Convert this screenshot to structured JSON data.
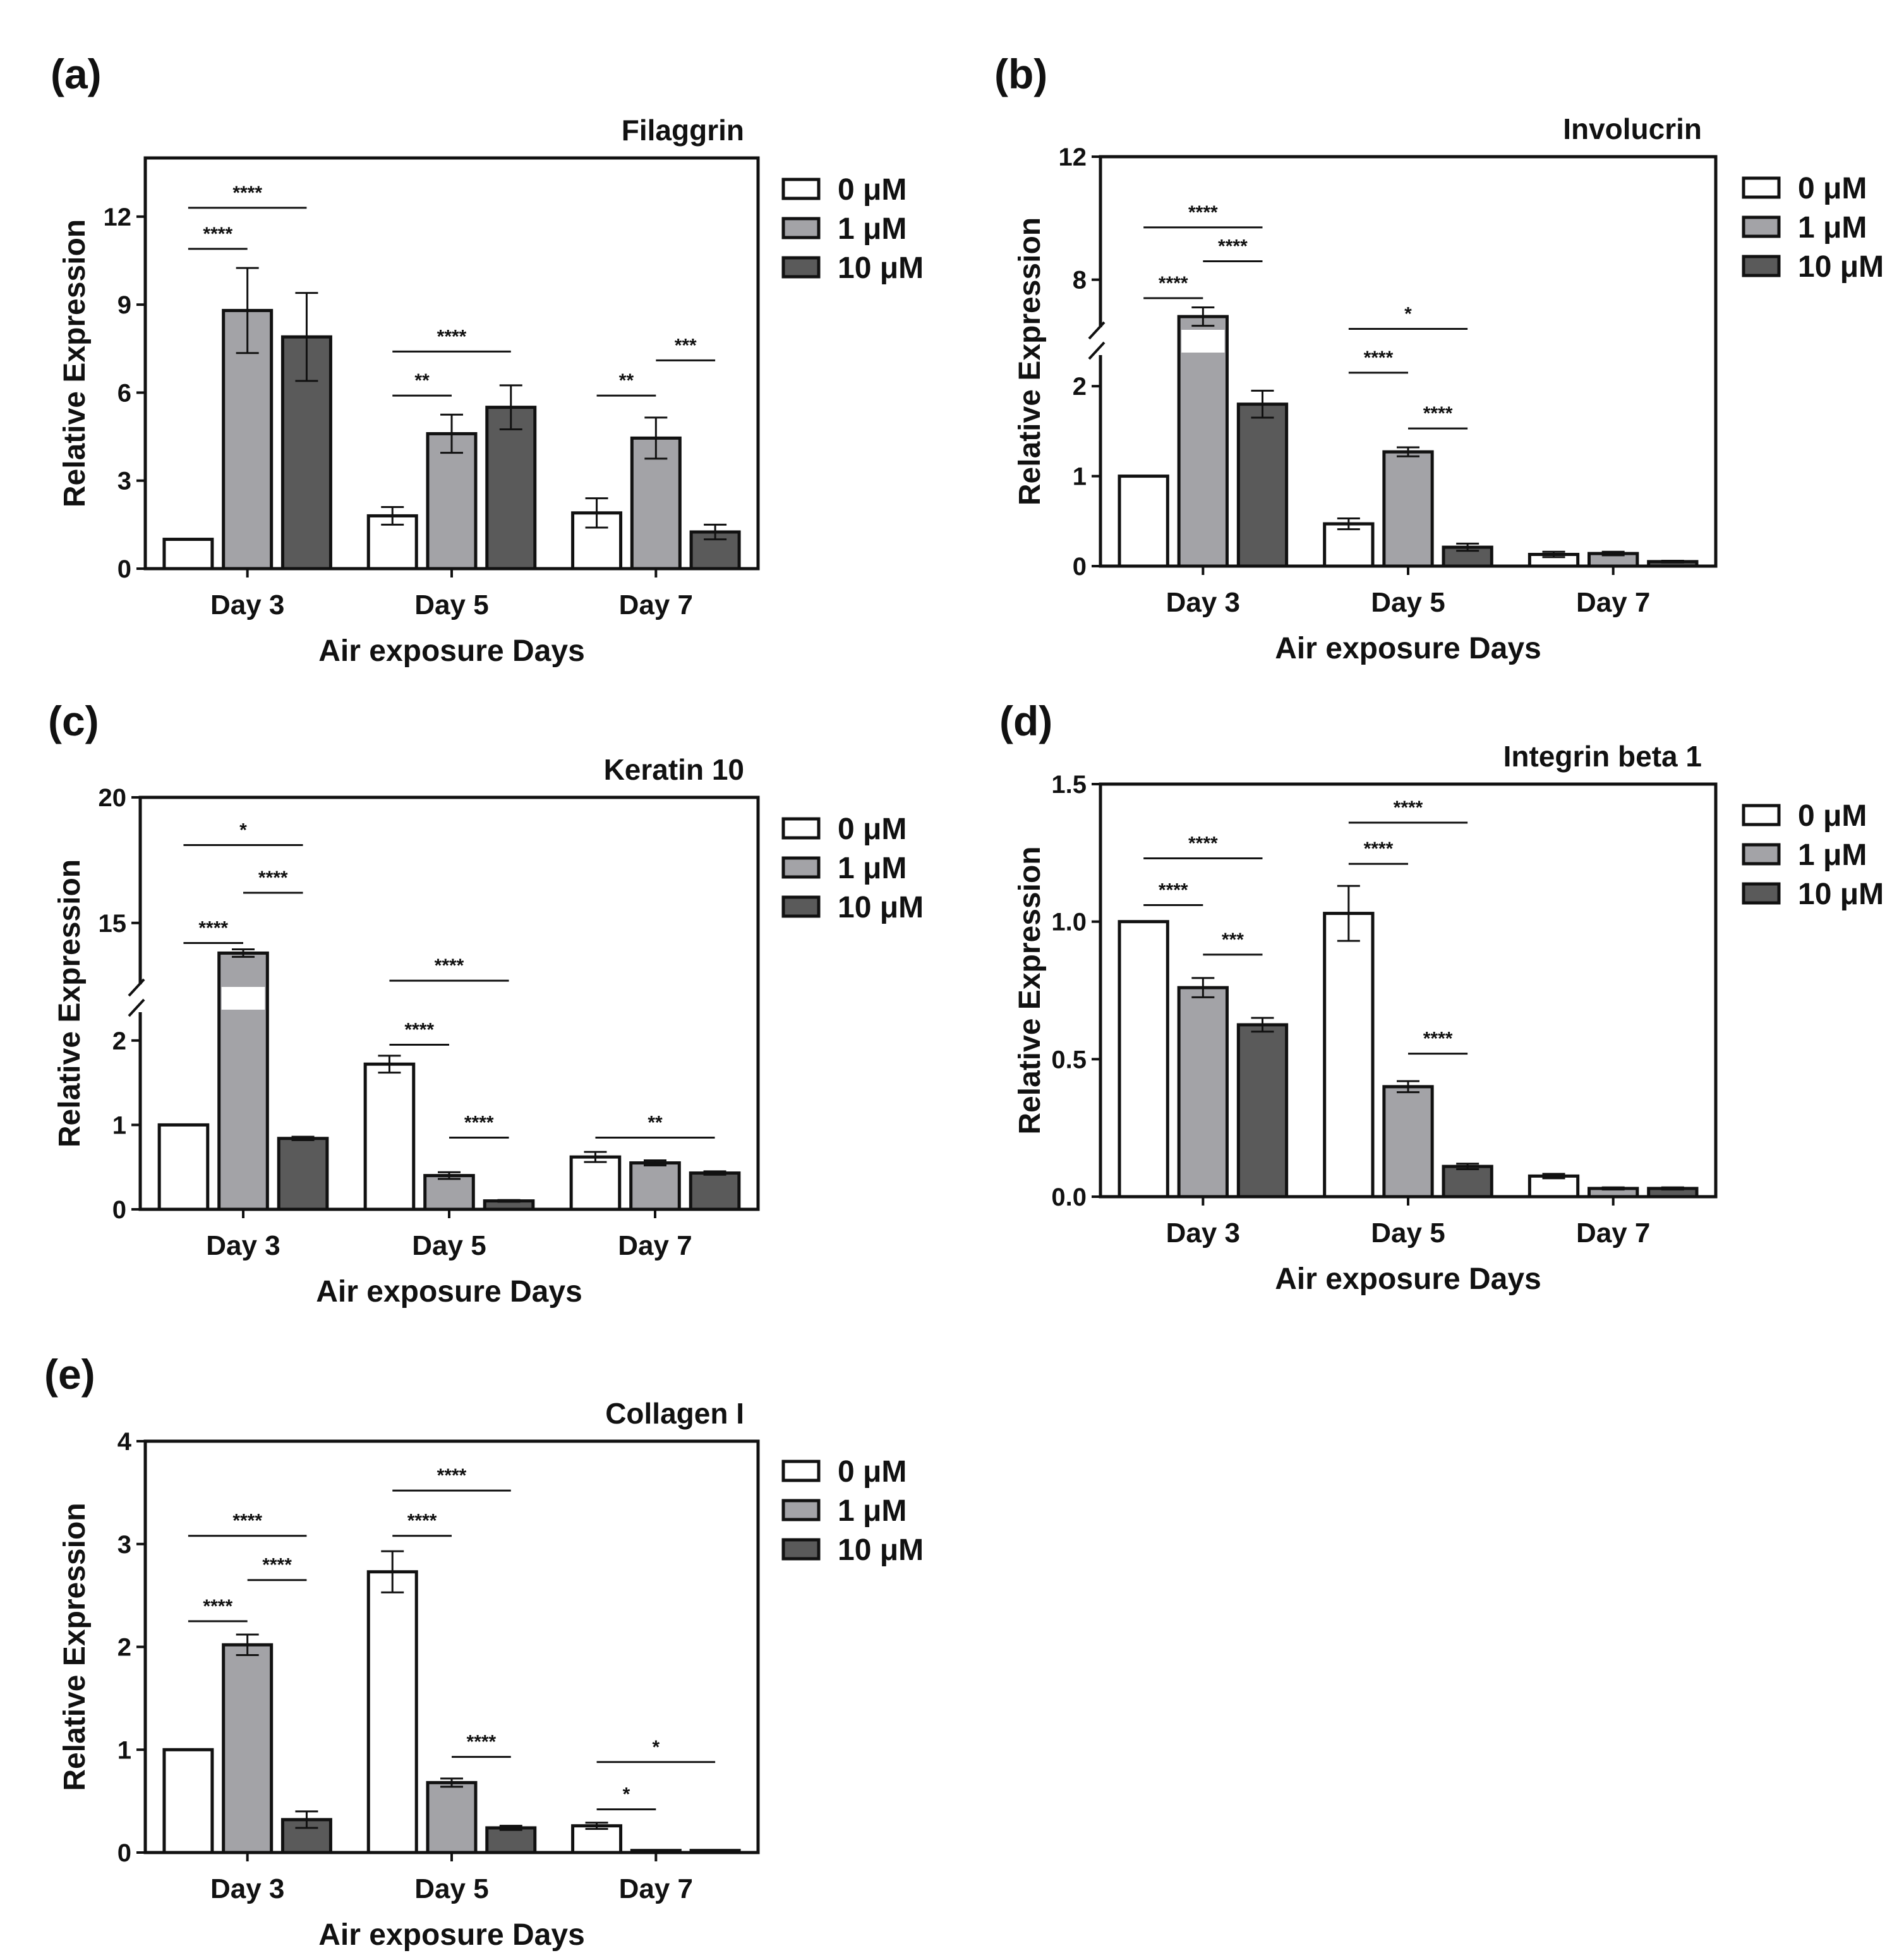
{
  "legend_colors": {
    "0 μM": "#ffffff",
    "1 μM": "#a3a3a7",
    "10 μM": "#5a5a5a"
  },
  "chart_data": [
    {
      "panel": "(a)",
      "type": "bar",
      "title": "Filaggrin",
      "xlabel": "Air exposure Days",
      "ylabel": "Relative Expression",
      "categories": [
        "Day 3",
        "Day 5",
        "Day 7"
      ],
      "ylim": [
        0,
        14
      ],
      "yticks": [
        0,
        3,
        6,
        9,
        12
      ],
      "ytick_labels": [
        "0",
        "3",
        "6",
        "9",
        "12"
      ],
      "legend": [
        "0 μM",
        "1 μM",
        "10 μM"
      ],
      "series": [
        {
          "name": "0 μM",
          "values": [
            1.0,
            1.8,
            1.9
          ],
          "errors": [
            0,
            0.3,
            0.5
          ]
        },
        {
          "name": "1 μM",
          "values": [
            8.8,
            4.6,
            4.45
          ],
          "errors": [
            1.45,
            0.65,
            0.7
          ]
        },
        {
          "name": "10 μM",
          "values": [
            7.9,
            5.5,
            1.25
          ],
          "errors": [
            1.5,
            0.75,
            0.25
          ]
        }
      ],
      "significance": [
        {
          "cat": 0,
          "from": 0,
          "to": 2,
          "label": "****",
          "level": 12.3
        },
        {
          "cat": 0,
          "from": 0,
          "to": 1,
          "label": "****",
          "level": 10.9
        },
        {
          "cat": 1,
          "from": 0,
          "to": 2,
          "label": "****",
          "level": 7.4
        },
        {
          "cat": 1,
          "from": 0,
          "to": 1,
          "label": "**",
          "level": 5.9
        },
        {
          "cat": 2,
          "from": 1,
          "to": 2,
          "label": "***",
          "level": 7.1
        },
        {
          "cat": 2,
          "from": 0,
          "to": 1,
          "label": "**",
          "level": 5.9
        }
      ]
    },
    {
      "panel": "(b)",
      "type": "bar",
      "title": "Involucrin",
      "xlabel": "Air exposure Days",
      "ylabel": "Relative Expression",
      "categories": [
        "Day 3",
        "Day 5",
        "Day 7"
      ],
      "axis_break": {
        "lower": [
          0,
          2.5
        ],
        "upper": [
          6,
          12
        ]
      },
      "yticks": [
        0,
        1,
        2,
        8,
        12
      ],
      "ytick_labels": [
        "0",
        "1",
        "2",
        "8",
        "12"
      ],
      "legend": [
        "0 μM",
        "1 μM",
        "10 μM"
      ],
      "series": [
        {
          "name": "0 μM",
          "values": [
            1.0,
            0.47,
            0.13
          ],
          "errors": [
            0,
            0.06,
            0.03
          ]
        },
        {
          "name": "1 μM",
          "values": [
            6.8,
            1.27,
            0.14
          ],
          "errors": [
            0.3,
            0.05,
            0.02
          ]
        },
        {
          "name": "10 μM",
          "values": [
            1.8,
            0.21,
            0.05
          ],
          "errors": [
            0.15,
            0.04,
            0.01
          ]
        }
      ],
      "significance": [
        {
          "cat": 0,
          "from": 0,
          "to": 2,
          "label": "****",
          "level": 9.7
        },
        {
          "cat": 0,
          "from": 1,
          "to": 2,
          "label": "****",
          "level": 8.6
        },
        {
          "cat": 0,
          "from": 0,
          "to": 1,
          "label": "****",
          "level": 7.4
        },
        {
          "cat": 1,
          "from": 0,
          "to": 2,
          "label": "*",
          "level": 6.4
        },
        {
          "cat": 1,
          "from": 0,
          "to": 1,
          "label": "****",
          "level": 2.15
        },
        {
          "cat": 1,
          "from": 1,
          "to": 2,
          "label": "****",
          "level": 1.53
        }
      ]
    },
    {
      "panel": "(c)",
      "type": "bar",
      "title": "Keratin 10",
      "xlabel": "Air exposure Days",
      "ylabel": "Relative Expression",
      "categories": [
        "Day 3",
        "Day 5",
        "Day 7"
      ],
      "axis_break": {
        "lower": [
          0,
          2.5
        ],
        "upper": [
          12,
          20
        ]
      },
      "yticks": [
        0,
        1,
        2,
        15,
        20
      ],
      "ytick_labels": [
        "0",
        "1",
        "2",
        "15",
        "20"
      ],
      "legend": [
        "0 μM",
        "1 μM",
        "10 μM"
      ],
      "series": [
        {
          "name": "0 μM",
          "values": [
            1.0,
            1.72,
            0.62
          ],
          "errors": [
            0,
            0.1,
            0.06
          ]
        },
        {
          "name": "1 μM",
          "values": [
            13.8,
            0.4,
            0.55
          ],
          "errors": [
            0.15,
            0.04,
            0.03
          ]
        },
        {
          "name": "10 μM",
          "values": [
            0.84,
            0.1,
            0.43
          ],
          "errors": [
            0.02,
            0.01,
            0.02
          ]
        }
      ],
      "significance": [
        {
          "cat": 0,
          "from": 0,
          "to": 2,
          "label": "*",
          "level": 18.1
        },
        {
          "cat": 0,
          "from": 1,
          "to": 2,
          "label": "****",
          "level": 16.2
        },
        {
          "cat": 0,
          "from": 0,
          "to": 1,
          "label": "****",
          "level": 14.2
        },
        {
          "cat": 1,
          "from": 0,
          "to": 2,
          "label": "****",
          "level": 12.7
        },
        {
          "cat": 1,
          "from": 0,
          "to": 1,
          "label": "****",
          "level": 1.95
        },
        {
          "cat": 1,
          "from": 1,
          "to": 2,
          "label": "****",
          "level": 0.85
        },
        {
          "cat": 2,
          "from": 0,
          "to": 2,
          "label": "**",
          "level": 0.85
        }
      ]
    },
    {
      "panel": "(d)",
      "type": "bar",
      "title": "Integrin beta 1",
      "xlabel": "Air exposure Days",
      "ylabel": "Relative Expression",
      "categories": [
        "Day 3",
        "Day 5",
        "Day 7"
      ],
      "ylim": [
        0,
        1.5
      ],
      "yticks": [
        0,
        0.5,
        1.0,
        1.5
      ],
      "ytick_labels": [
        "0.0",
        "0.5",
        "1.0",
        "1.5"
      ],
      "legend": [
        "0 μM",
        "1 μM",
        "10 μM"
      ],
      "series": [
        {
          "name": "0 μM",
          "values": [
            1.0,
            1.03,
            0.075
          ],
          "errors": [
            0,
            0.1,
            0.008
          ]
        },
        {
          "name": "1 μM",
          "values": [
            0.76,
            0.4,
            0.03
          ],
          "errors": [
            0.035,
            0.02,
            0.004
          ]
        },
        {
          "name": "10 μM",
          "values": [
            0.625,
            0.11,
            0.03
          ],
          "errors": [
            0.025,
            0.01,
            0.004
          ]
        }
      ],
      "significance": [
        {
          "cat": 0,
          "from": 0,
          "to": 2,
          "label": "****",
          "level": 1.23
        },
        {
          "cat": 0,
          "from": 0,
          "to": 1,
          "label": "****",
          "level": 1.06
        },
        {
          "cat": 0,
          "from": 1,
          "to": 2,
          "label": "***",
          "level": 0.88
        },
        {
          "cat": 1,
          "from": 0,
          "to": 2,
          "label": "****",
          "level": 1.36
        },
        {
          "cat": 1,
          "from": 0,
          "to": 1,
          "label": "****",
          "level": 1.21
        },
        {
          "cat": 1,
          "from": 1,
          "to": 2,
          "label": "****",
          "level": 0.52
        }
      ]
    },
    {
      "panel": "(e)",
      "type": "bar",
      "title": "Collagen I",
      "xlabel": "Air exposure Days",
      "ylabel": "Relative Expression",
      "categories": [
        "Day 3",
        "Day 5",
        "Day 7"
      ],
      "ylim": [
        0,
        4
      ],
      "yticks": [
        0,
        1,
        2,
        3,
        4
      ],
      "ytick_labels": [
        "0",
        "1",
        "2",
        "3",
        "4"
      ],
      "legend": [
        "0 μM",
        "1 μM",
        "10 μM"
      ],
      "series": [
        {
          "name": "0 μM",
          "values": [
            1.0,
            2.73,
            0.26
          ],
          "errors": [
            0,
            0.2,
            0.03
          ]
        },
        {
          "name": "1 μM",
          "values": [
            2.02,
            0.68,
            0.02
          ],
          "errors": [
            0.1,
            0.04,
            0.003
          ]
        },
        {
          "name": "10 μM",
          "values": [
            0.32,
            0.24,
            0.02
          ],
          "errors": [
            0.08,
            0.02,
            0.003
          ]
        }
      ],
      "significance": [
        {
          "cat": 0,
          "from": 0,
          "to": 2,
          "label": "****",
          "level": 3.08
        },
        {
          "cat": 0,
          "from": 1,
          "to": 2,
          "label": "****",
          "level": 2.65
        },
        {
          "cat": 0,
          "from": 0,
          "to": 1,
          "label": "****",
          "level": 2.25
        },
        {
          "cat": 1,
          "from": 0,
          "to": 2,
          "label": "****",
          "level": 3.52
        },
        {
          "cat": 1,
          "from": 0,
          "to": 1,
          "label": "****",
          "level": 3.08
        },
        {
          "cat": 1,
          "from": 1,
          "to": 2,
          "label": "****",
          "level": 0.93
        },
        {
          "cat": 2,
          "from": 0,
          "to": 2,
          "label": "*",
          "level": 0.88
        },
        {
          "cat": 2,
          "from": 0,
          "to": 1,
          "label": "*",
          "level": 0.42
        }
      ]
    }
  ]
}
